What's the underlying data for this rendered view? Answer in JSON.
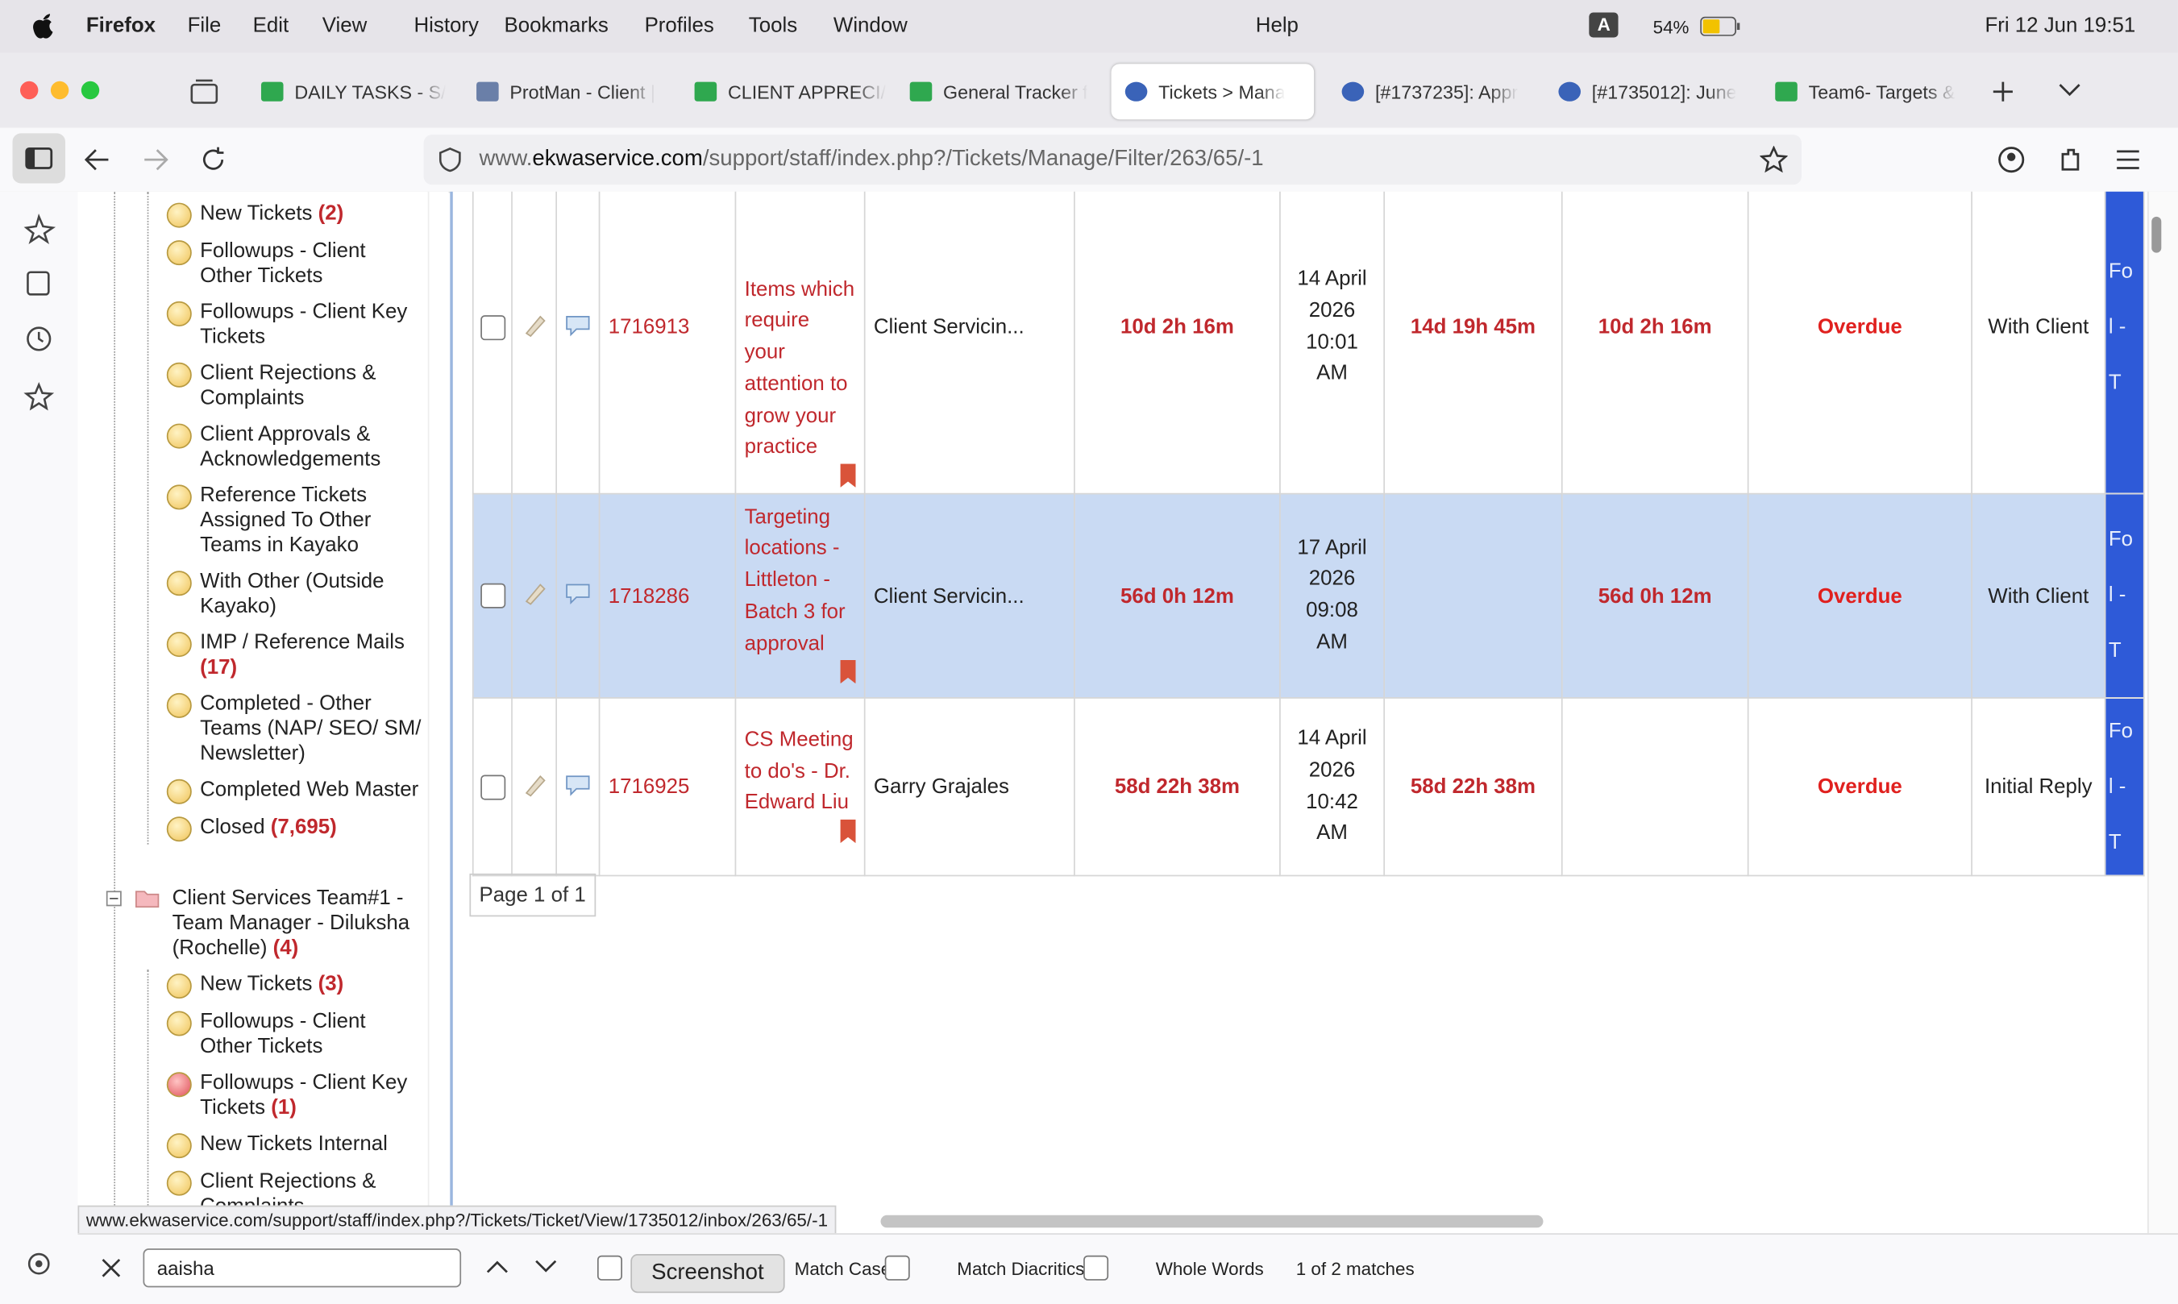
{
  "menubar": {
    "app": "Firefox",
    "menus": [
      "File",
      "Edit",
      "View",
      "History",
      "Bookmarks",
      "Profiles",
      "Tools",
      "Window"
    ],
    "help": "Help",
    "input_source": "A",
    "battery": "54%",
    "datetime": "Fri 12 Jun  19:51"
  },
  "tabs": [
    {
      "title": "DAILY TASKS - S/",
      "icon": "sheet",
      "active": false
    },
    {
      "title": "ProtMan - Client |",
      "icon": "doc",
      "active": false
    },
    {
      "title": "CLIENT APPRECI/",
      "icon": "sheet",
      "active": false
    },
    {
      "title": "General Tracker f",
      "icon": "sheet",
      "active": false
    },
    {
      "title": "Tickets > Mana",
      "icon": "globe",
      "active": true
    },
    {
      "title": "[#1737235]: Appr",
      "icon": "globe",
      "active": false
    },
    {
      "title": "[#1735012]: June",
      "icon": "globe",
      "active": false
    },
    {
      "title": "Team6- Targets &",
      "icon": "sheet",
      "active": false
    }
  ],
  "url": {
    "prefix": "www.",
    "host": "ekwaservice.com",
    "path": "/support/staff/index.php?/Tickets/Manage/Filter/263/65/-1"
  },
  "tree": {
    "items_a": [
      {
        "label": "New Tickets",
        "count": "(2)",
        "icon": "yellow"
      },
      {
        "label": "Followups - Client Other Tickets",
        "count": null,
        "icon": "yellow"
      },
      {
        "label": "Followups - Client Key Tickets",
        "count": null,
        "icon": "yellow"
      },
      {
        "label": "Client Rejections & Complaints",
        "count": null,
        "icon": "yellow"
      },
      {
        "label": "Client Approvals & Acknowledgements",
        "count": null,
        "icon": "yellow"
      },
      {
        "label": "Reference Tickets Assigned To Other Teams in Kayako",
        "count": null,
        "icon": "yellow"
      },
      {
        "label": "With Other (Outside Kayako)",
        "count": null,
        "icon": "yellow"
      },
      {
        "label": "IMP / Reference Mails",
        "count": "(17)",
        "icon": "yellow"
      },
      {
        "label": "Completed - Other Teams (NAP/ SEO/ SM/ Newsletter)",
        "count": null,
        "icon": "yellow"
      },
      {
        "label": "Completed Web Master",
        "count": null,
        "icon": "yellow"
      },
      {
        "label": "Closed",
        "count": "(7,695)",
        "icon": "yellow"
      }
    ],
    "group": {
      "label": "Client Services Team#1 - Team Manager - Diluksha (Rochelle)",
      "count": "(4)"
    },
    "items_b": [
      {
        "label": "New Tickets",
        "count": "(3)",
        "icon": "yellow"
      },
      {
        "label": "Followups - Client Other Tickets",
        "count": null,
        "icon": "yellow"
      },
      {
        "label": "Followups - Client Key Tickets",
        "count": "(1)",
        "icon": "red"
      },
      {
        "label": "New Tickets Internal",
        "count": null,
        "icon": "yellow"
      },
      {
        "label": "Client Rejections & Complaints",
        "count": null,
        "icon": "yellow"
      }
    ]
  },
  "table": {
    "rows": [
      {
        "id": "1716913",
        "subject": "Items which require your attention to grow your practice",
        "department": "Client Servicin...",
        "time1": "10d 2h 16m",
        "date": "14 April 2026 10:01 AM",
        "time2": "14d 19h 45m",
        "time3": "10d 2h 16m",
        "due": "Overdue",
        "status": "With Client",
        "flag": "Fol - T",
        "selected": false
      },
      {
        "id": "1718286",
        "subject": "Targeting locations - Littleton - Batch 3 for approval",
        "department": "Client Servicin...",
        "time1": "56d 0h 12m",
        "date": "17 April 2026 09:08 AM",
        "time2": null,
        "time3": "56d 0h 12m",
        "due": "Overdue",
        "status": "With Client",
        "flag": "Fol - T",
        "selected": true
      },
      {
        "id": "1716925",
        "subject": "CS Meeting to do's - Dr. Edward Liu",
        "department": "Garry Grajales",
        "time1": "58d 22h 38m",
        "date": "14 April 2026 10:42 AM",
        "time2": "58d 22h 38m",
        "time3": null,
        "due": "Overdue",
        "status": "Initial Reply",
        "flag": "Fol - T",
        "selected": false
      }
    ]
  },
  "pagination": "Page 1 of 1",
  "status_url": "www.ekwaservice.com/support/staff/index.php?/Tickets/Ticket/View/1735012/inbox/263/65/-1",
  "findbar": {
    "query": "aaisha",
    "tooltip": "Screenshot",
    "options": [
      "Match Case",
      "Match Diacritics",
      "Whole Words"
    ],
    "result": "1 of 2 matches"
  }
}
